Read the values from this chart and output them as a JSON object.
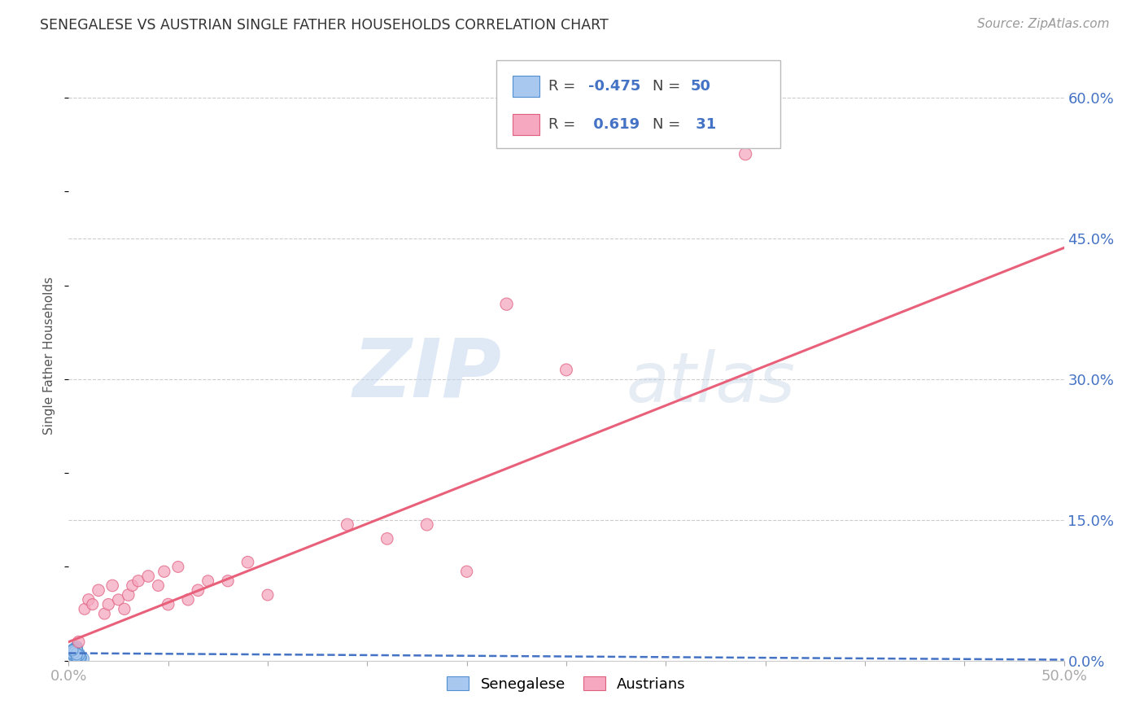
{
  "title": "SENEGALESE VS AUSTRIAN SINGLE FATHER HOUSEHOLDS CORRELATION CHART",
  "source": "Source: ZipAtlas.com",
  "ylabel": "Single Father Households",
  "xlim": [
    0.0,
    0.5
  ],
  "ylim": [
    0.0,
    0.65
  ],
  "yticks_right": [
    0.0,
    0.15,
    0.3,
    0.45,
    0.6
  ],
  "ytick_labels_right": [
    "0.0%",
    "15.0%",
    "30.0%",
    "45.0%",
    "60.0%"
  ],
  "watermark_zip": "ZIP",
  "watermark_atlas": "atlas",
  "legend_r_blue": "-0.475",
  "legend_n_blue": "50",
  "legend_r_pink": "0.619",
  "legend_n_pink": "31",
  "blue_color": "#A8C8F0",
  "pink_color": "#F5A8C0",
  "blue_edge_color": "#5090D0",
  "pink_edge_color": "#E06080",
  "blue_line_color": "#4472C4",
  "pink_line_color": "#E8607A",
  "grid_color": "#CCCCCC",
  "background_color": "#FFFFFF",
  "senegalese_x": [
    0.002,
    0.003,
    0.004,
    0.002,
    0.005,
    0.003,
    0.004,
    0.003,
    0.005,
    0.002,
    0.003,
    0.006,
    0.004,
    0.003,
    0.005,
    0.006,
    0.003,
    0.002,
    0.004,
    0.004,
    0.005,
    0.003,
    0.002,
    0.004,
    0.005,
    0.006,
    0.004,
    0.003,
    0.002,
    0.004,
    0.007,
    0.005,
    0.003,
    0.004,
    0.004,
    0.005,
    0.006,
    0.003,
    0.002,
    0.006,
    0.004,
    0.004,
    0.005,
    0.003,
    0.005,
    0.002,
    0.004,
    0.003,
    0.004,
    0.002
  ],
  "senegalese_y": [
    0.01,
    0.008,
    0.005,
    0.012,
    0.007,
    0.003,
    0.015,
    0.006,
    0.004,
    0.009,
    0.011,
    0.003,
    0.008,
    0.013,
    0.006,
    0.004,
    0.01,
    0.007,
    0.005,
    0.009,
    0.003,
    0.012,
    0.008,
    0.006,
    0.004,
    0.002,
    0.007,
    0.011,
    0.009,
    0.005,
    0.002,
    0.006,
    0.01,
    0.008,
    0.013,
    0.005,
    0.003,
    0.009,
    0.012,
    0.004,
    0.007,
    0.011,
    0.005,
    0.01,
    0.006,
    0.008,
    0.004,
    0.009,
    0.007,
    0.011
  ],
  "senegalese_sizes": [
    120,
    100,
    110,
    90,
    130,
    95,
    105,
    115,
    85,
    120,
    100,
    110,
    95,
    105,
    115,
    90,
    120,
    130,
    100,
    110,
    95,
    105,
    115,
    120,
    90,
    100,
    110,
    95,
    105,
    115,
    130,
    90,
    120,
    100,
    110,
    95,
    105,
    115,
    85,
    90,
    100,
    110,
    95,
    105,
    115,
    120,
    90,
    100,
    110,
    95
  ],
  "austrian_x": [
    0.005,
    0.008,
    0.01,
    0.012,
    0.015,
    0.018,
    0.02,
    0.022,
    0.025,
    0.028,
    0.03,
    0.032,
    0.035,
    0.04,
    0.045,
    0.048,
    0.05,
    0.055,
    0.06,
    0.065,
    0.07,
    0.08,
    0.09,
    0.1,
    0.14,
    0.16,
    0.18,
    0.2,
    0.22,
    0.25,
    0.34
  ],
  "austrian_y": [
    0.02,
    0.055,
    0.065,
    0.06,
    0.075,
    0.05,
    0.06,
    0.08,
    0.065,
    0.055,
    0.07,
    0.08,
    0.085,
    0.09,
    0.08,
    0.095,
    0.06,
    0.1,
    0.065,
    0.075,
    0.085,
    0.085,
    0.105,
    0.07,
    0.145,
    0.13,
    0.145,
    0.095,
    0.38,
    0.31,
    0.54
  ],
  "austrian_sizes": [
    110,
    100,
    105,
    100,
    110,
    100,
    105,
    110,
    100,
    105,
    110,
    100,
    105,
    110,
    100,
    105,
    110,
    100,
    105,
    110,
    100,
    105,
    110,
    100,
    115,
    110,
    115,
    105,
    120,
    115,
    120
  ],
  "blue_trend_x": [
    0.0,
    0.5
  ],
  "blue_trend_y": [
    0.008,
    0.001
  ],
  "pink_trend_x": [
    0.0,
    0.5
  ],
  "pink_trend_y": [
    0.02,
    0.44
  ]
}
